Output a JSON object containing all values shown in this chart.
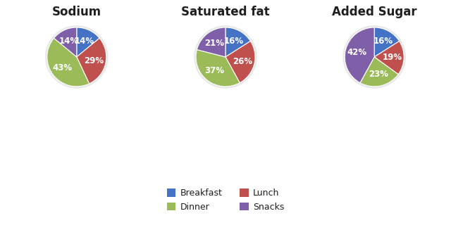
{
  "charts": [
    {
      "title": "Sodium",
      "values": [
        14,
        29,
        43,
        14
      ],
      "labels": [
        "Breakfast",
        "Lunch",
        "Dinner",
        "Snacks"
      ],
      "startangle": 90
    },
    {
      "title": "Saturated fat",
      "values": [
        16,
        26,
        37,
        21
      ],
      "labels": [
        "Breakfast",
        "Lunch",
        "Dinner",
        "Snacks"
      ],
      "startangle": 90
    },
    {
      "title": "Added Sugar",
      "values": [
        16,
        19,
        23,
        42
      ],
      "labels": [
        "Breakfast",
        "Lunch",
        "Dinner",
        "Snacks"
      ],
      "startangle": 90
    }
  ],
  "colors": {
    "Breakfast": "#4472C4",
    "Lunch": "#C0504D",
    "Dinner": "#9BBB59",
    "Snacks": "#7F5FA8"
  },
  "legend_order": [
    "Breakfast",
    "Dinner",
    "Lunch",
    "Snacks"
  ],
  "figure_bg": "#FFFFFF",
  "label_fontsize": 8.5,
  "title_fontsize": 12,
  "title_fontweight": "bold"
}
